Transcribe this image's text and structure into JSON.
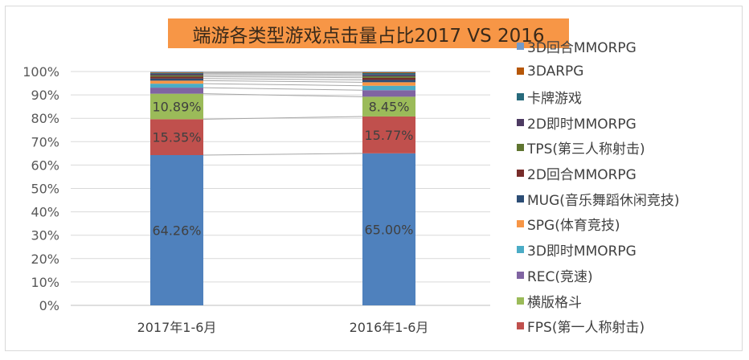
{
  "chart_data": {
    "type": "bar",
    "stacked": true,
    "percent": true,
    "title": "端游各类型游戏点击量占比2017 VS 2016",
    "categories": [
      "2017年1-6月",
      "2016年1-6月"
    ],
    "ylim": [
      0,
      100
    ],
    "yticks": [
      "0%",
      "10%",
      "20%",
      "30%",
      "40%",
      "50%",
      "60%",
      "70%",
      "80%",
      "90%",
      "100%"
    ],
    "grid": true,
    "legend_position": "right",
    "series": [
      {
        "name": "FPS(第一人称射击)",
        "color": "#4f81bd",
        "values": [
          64.26,
          65.0
        ],
        "labels": [
          "64.26%",
          "65.00%"
        ]
      },
      {
        "name": "FPS(第一人称射击)",
        "color": "#c0504d",
        "values": [
          15.35,
          15.77
        ],
        "labels": [
          "15.35%",
          "15.77%"
        ]
      },
      {
        "name": "横版格斗",
        "color": "#9bbb59",
        "values": [
          10.89,
          8.45
        ],
        "labels": [
          "10.89%",
          "8.45%"
        ]
      },
      {
        "name": "REC(竞速)",
        "color": "#8064a2",
        "values": [
          2.6,
          2.8
        ],
        "labels": [
          "",
          ""
        ]
      },
      {
        "name": "3D即时MMORPG",
        "color": "#4bacc6",
        "values": [
          1.7,
          1.9
        ],
        "labels": [
          "",
          ""
        ]
      },
      {
        "name": "SPG(体育竞技)",
        "color": "#f79646",
        "values": [
          1.3,
          1.5
        ],
        "labels": [
          "",
          ""
        ]
      },
      {
        "name": "MUG(音乐舞蹈休闲竞技)",
        "color": "#2c4d75",
        "values": [
          0.9,
          1.0
        ],
        "labels": [
          "",
          ""
        ]
      },
      {
        "name": "2D回合MMORPG",
        "color": "#772c2a",
        "values": [
          0.8,
          0.9
        ],
        "labels": [
          "",
          ""
        ]
      },
      {
        "name": "TPS(第三人称射击)",
        "color": "#5f7530",
        "values": [
          0.6,
          0.7
        ],
        "labels": [
          "",
          ""
        ]
      },
      {
        "name": "2D即时MMORPG",
        "color": "#4d3b62",
        "values": [
          0.6,
          0.7
        ],
        "labels": [
          "",
          ""
        ]
      },
      {
        "name": "卡牌游戏",
        "color": "#276a7c",
        "values": [
          0.4,
          0.6
        ],
        "labels": [
          "",
          ""
        ]
      },
      {
        "name": "3DARPG",
        "color": "#b65708",
        "values": [
          0.3,
          0.4
        ],
        "labels": [
          "",
          ""
        ]
      },
      {
        "name": "3D回合MMORPG",
        "color": "#729aca",
        "values": [
          0.3,
          0.28
        ],
        "labels": [
          "",
          ""
        ]
      }
    ],
    "legend_order": [
      {
        "name": "3D回合MMORPG",
        "color": "#729aca"
      },
      {
        "name": "3DARPG",
        "color": "#b65708"
      },
      {
        "name": "卡牌游戏",
        "color": "#276a7c"
      },
      {
        "name": "2D即时MMORPG",
        "color": "#4d3b62"
      },
      {
        "name": "TPS(第三人称射击)",
        "color": "#5f7530"
      },
      {
        "name": "2D回合MMORPG",
        "color": "#772c2a"
      },
      {
        "name": "MUG(音乐舞蹈休闲竞技)",
        "color": "#2c4d75"
      },
      {
        "name": "SPG(体育竞技)",
        "color": "#f79646"
      },
      {
        "name": "3D即时MMORPG",
        "color": "#4bacc6"
      },
      {
        "name": "REC(竞速)",
        "color": "#8064a2"
      },
      {
        "name": "横版格斗",
        "color": "#9bbb59"
      },
      {
        "name": "FPS(第一人称射击)",
        "color": "#c0504d"
      }
    ]
  }
}
